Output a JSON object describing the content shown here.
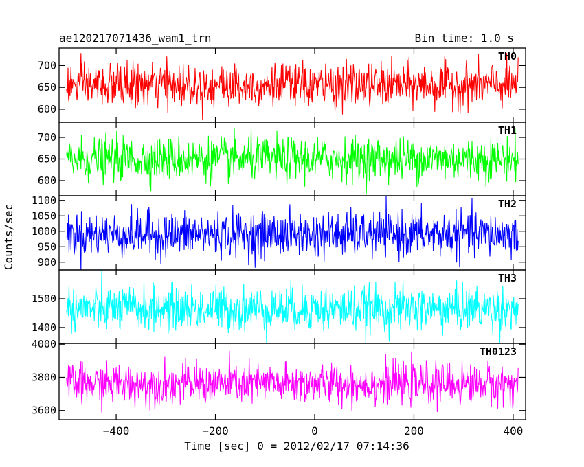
{
  "chart_data": {
    "type": "line",
    "title": "ae120217071436_wam1_trn",
    "bin_time_label": "Bin time: 1.0 s",
    "xlabel": "Time [sec] 0 = 2012/02/17 07:14:36",
    "ylabel": "Counts/sec",
    "xlim": [
      -515,
      425
    ],
    "x_ticks": [
      -400,
      -200,
      0,
      200,
      400
    ],
    "x_tick_labels": [
      "−400",
      "−200",
      "0",
      "200",
      "400"
    ],
    "x_range": [
      -500,
      410
    ],
    "panels": [
      {
        "name": "TH0",
        "color": "#ff0000",
        "ylim": [
          570,
          740
        ],
        "y_ticks": [
          600,
          650,
          700
        ],
        "mean": 655,
        "amplitude": 45
      },
      {
        "name": "TH1",
        "color": "#00ff00",
        "ylim": [
          565,
          735
        ],
        "y_ticks": [
          600,
          650,
          700
        ],
        "mean": 650,
        "amplitude": 45
      },
      {
        "name": "TH2",
        "color": "#0000ff",
        "ylim": [
          875,
          1115
        ],
        "y_ticks": [
          900,
          950,
          1000,
          1050,
          1100
        ],
        "mean": 990,
        "amplitude": 65
      },
      {
        "name": "TH3",
        "color": "#00ffff",
        "ylim": [
          1345,
          1600
        ],
        "y_ticks": [
          1400,
          1500
        ],
        "mean": 1465,
        "amplitude": 70
      },
      {
        "name": "TH0123",
        "color": "#ff00ff",
        "ylim": [
          3545,
          4005
        ],
        "y_ticks": [
          3600,
          3800,
          4000
        ],
        "mean": 3760,
        "amplitude": 110
      }
    ]
  }
}
